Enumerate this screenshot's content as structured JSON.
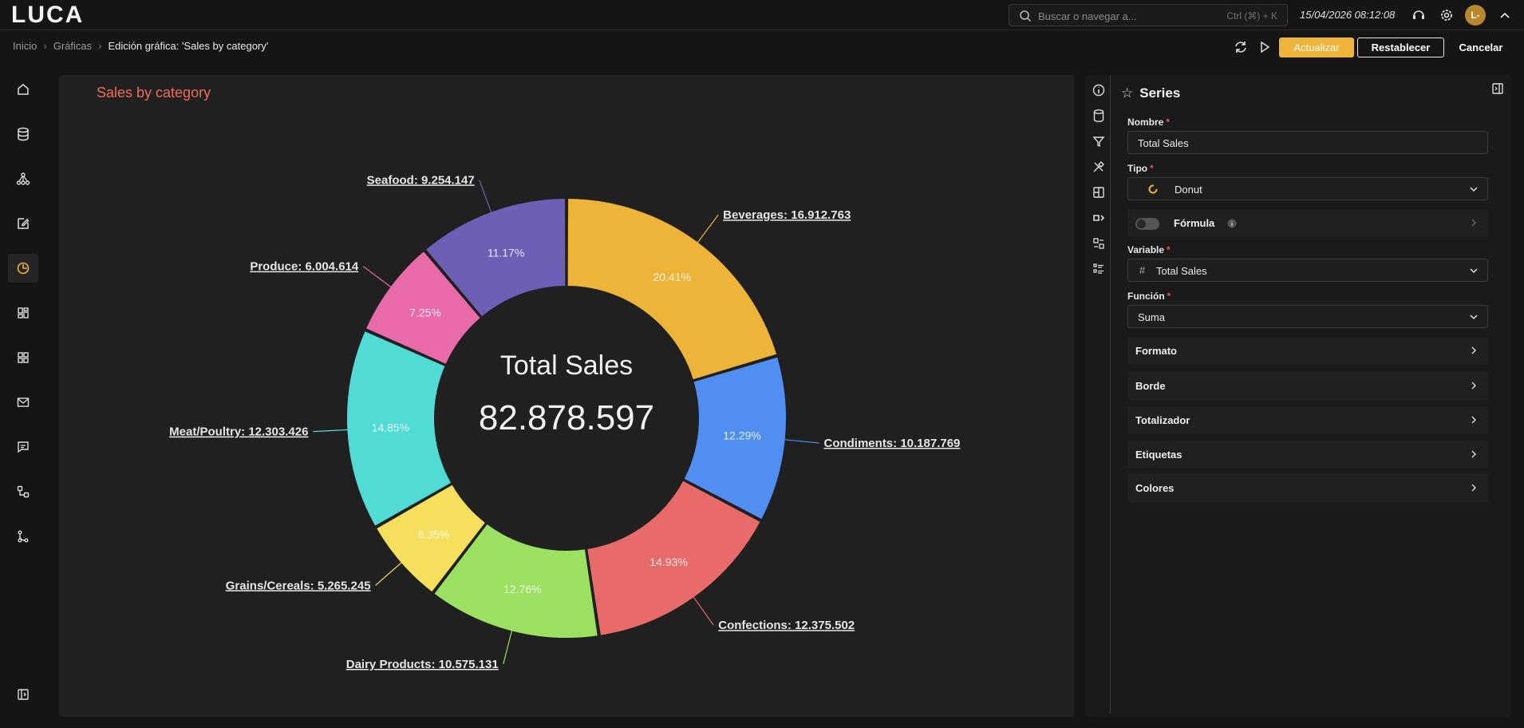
{
  "header": {
    "logo": "LUCA",
    "search_placeholder": "Buscar o navegar a...",
    "search_shortcut": "Ctrl (⌘) + K",
    "datetime": "15/04/2026 08:12:08",
    "avatar": "L-"
  },
  "breadcrumb": {
    "items": [
      "Inicio",
      "Gráficas"
    ],
    "current": "Edición gráfica: 'Sales by category'"
  },
  "toolbar": {
    "update_label": "Actualizar",
    "reset_label": "Restablecer",
    "cancel_label": "Cancelar"
  },
  "sidebar": {
    "items": [
      "home-icon",
      "database-icon",
      "network-icon",
      "edit-icon",
      "pie-chart-icon",
      "dashboard-icon",
      "grid-icon",
      "mail-icon",
      "message-icon",
      "workflow-icon",
      "git-branch-icon"
    ],
    "active": "pie-chart-icon"
  },
  "chart_data": {
    "type": "donut",
    "title": "Sales by category",
    "center_label": "Total Sales",
    "center_value": "82.878.597",
    "slices": [
      {
        "name": "Beverages",
        "value": 16912763,
        "value_label": "16.912.763",
        "percent": "20.41%",
        "color": "#eeb339"
      },
      {
        "name": "Condiments",
        "value": 10187769,
        "value_label": "10.187.769",
        "percent": "12.29%",
        "color": "#508ef2"
      },
      {
        "name": "Confections",
        "value": 12375502,
        "value_label": "12.375.502",
        "percent": "14.93%",
        "color": "#e86a69"
      },
      {
        "name": "Dairy Products",
        "value": 10575131,
        "value_label": "10.575.131",
        "percent": "12.76%",
        "color": "#9be060"
      },
      {
        "name": "Grains/Cereals",
        "value": 5265245,
        "value_label": "5.265.245",
        "percent": "6.35%",
        "color": "#f5df5c"
      },
      {
        "name": "Meat/Poultry",
        "value": 12303426,
        "value_label": "12.303.426",
        "percent": "14.85%",
        "color": "#50dbd5"
      },
      {
        "name": "Produce",
        "value": 6004614,
        "value_label": "6.004.614",
        "percent": "7.25%",
        "color": "#e86aa9"
      },
      {
        "name": "Seafood",
        "value": 9254147,
        "value_label": "9.254.147",
        "percent": "11.17%",
        "color": "#6d5fb6"
      }
    ]
  },
  "panel": {
    "title": "Series",
    "nombre_label": "Nombre",
    "nombre_value": "Total Sales",
    "tipo_label": "Tipo",
    "tipo_value": "Donut",
    "formula_label": "Fórmula",
    "variable_label": "Variable",
    "variable_value": "Total Sales",
    "funcion_label": "Función",
    "funcion_value": "Suma",
    "sections": [
      "Formato",
      "Borde",
      "Totalizador",
      "Etiquetas",
      "Colores"
    ]
  }
}
